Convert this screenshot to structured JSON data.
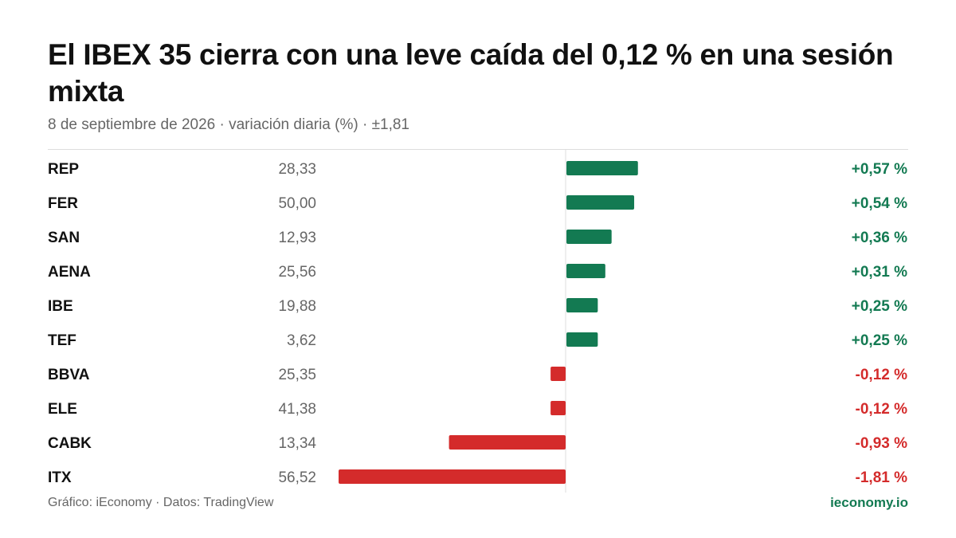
{
  "header": {
    "title": "El IBEX 35 cierra con una leve caída del 0,12  % en una sesión mixta",
    "subtitle": "8 de septiembre de 2026 · variación diaria (%) · ±1,81"
  },
  "footer": {
    "source": "Gráfico: iEconomy · Datos: TradingView",
    "brand": "ieconomy.io"
  },
  "colors": {
    "positive": "#137a52",
    "negative": "#d42b2b",
    "axis": "#dddddd"
  },
  "chart_data": {
    "type": "bar",
    "orientation": "horizontal",
    "xlim": [
      -1.81,
      1.81
    ],
    "rows": [
      {
        "ticker": "REP",
        "price": "28,33",
        "change": 0.57,
        "label": "+0,57 %"
      },
      {
        "ticker": "FER",
        "price": "50,00",
        "change": 0.54,
        "label": "+0,54 %"
      },
      {
        "ticker": "SAN",
        "price": "12,93",
        "change": 0.36,
        "label": "+0,36 %"
      },
      {
        "ticker": "AENA",
        "price": "25,56",
        "change": 0.31,
        "label": "+0,31 %"
      },
      {
        "ticker": "IBE",
        "price": "19,88",
        "change": 0.25,
        "label": "+0,25 %"
      },
      {
        "ticker": "TEF",
        "price": "3,62",
        "change": 0.25,
        "label": "+0,25 %"
      },
      {
        "ticker": "BBVA",
        "price": "25,35",
        "change": -0.12,
        "label": "-0,12 %"
      },
      {
        "ticker": "ELE",
        "price": "41,38",
        "change": -0.12,
        "label": "-0,12 %"
      },
      {
        "ticker": "CABK",
        "price": "13,34",
        "change": -0.93,
        "label": "-0,93 %"
      },
      {
        "ticker": "ITX",
        "price": "56,52",
        "change": -1.81,
        "label": "-1,81 %"
      }
    ]
  }
}
